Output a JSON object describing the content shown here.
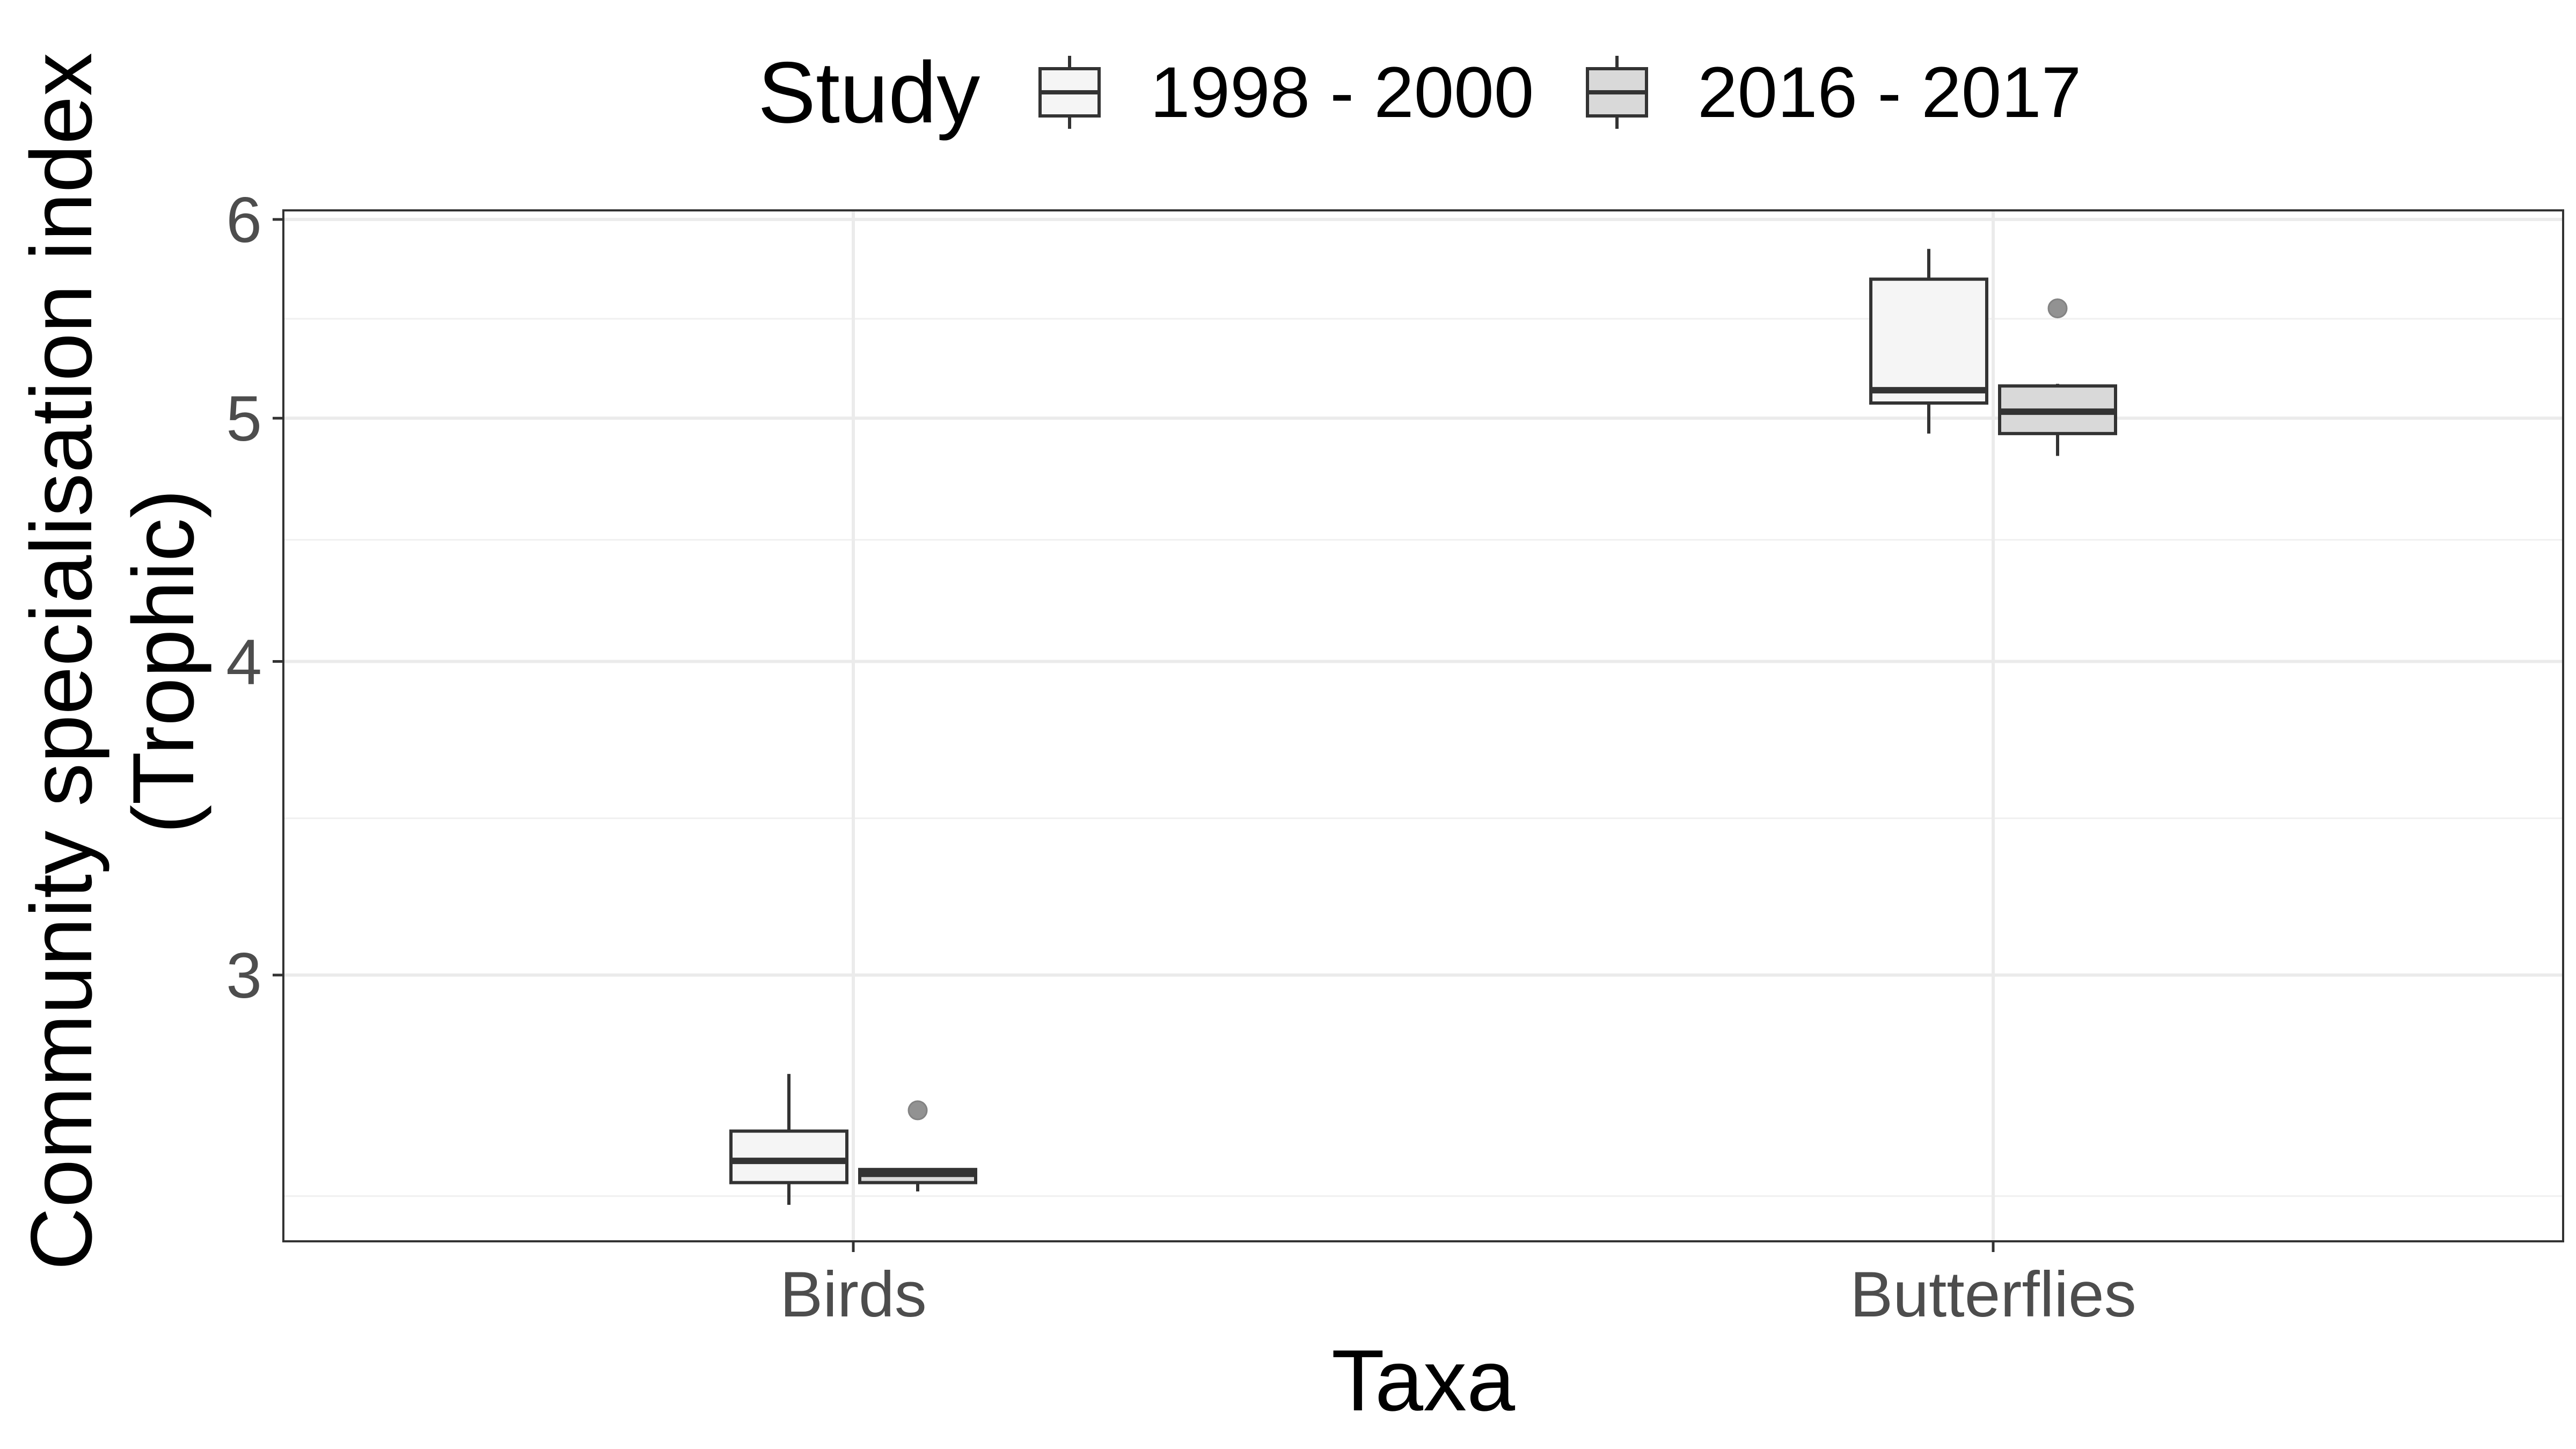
{
  "chart_data": {
    "type": "boxplot",
    "xlabel": "Taxa",
    "ylabel_lines": [
      "Community specialisation index",
      "(Trophic)"
    ],
    "categories": [
      "Birds",
      "Butterflies"
    ],
    "y_ticks": [
      3,
      4,
      5,
      6
    ],
    "y_tick_labels": [
      "3",
      "4",
      "5",
      "6"
    ],
    "y_scale": "log",
    "ylim": [
      2.35,
      6.05
    ],
    "grid": true,
    "legend": {
      "title": "Study",
      "position": "top"
    },
    "series": [
      {
        "name": "1998 - 2000",
        "fill": "#f5f5f5",
        "boxes": [
          {
            "category": "Birds",
            "whisker_low": 2.43,
            "q1": 2.48,
            "median": 2.53,
            "q3": 2.6,
            "whisker_high": 2.74,
            "outliers": []
          },
          {
            "category": "Butterflies",
            "whisker_low": 4.93,
            "q1": 5.07,
            "median": 5.13,
            "q3": 5.68,
            "whisker_high": 5.84,
            "outliers": []
          }
        ]
      },
      {
        "name": "2016 - 2017",
        "fill": "#d9d9d9",
        "boxes": [
          {
            "category": "Birds",
            "whisker_low": 2.46,
            "q1": 2.48,
            "median": 2.5,
            "q3": 2.51,
            "whisker_high": 2.51,
            "outliers": [
              2.65
            ]
          },
          {
            "category": "Butterflies",
            "whisker_low": 4.83,
            "q1": 4.93,
            "median": 5.03,
            "q3": 5.15,
            "whisker_high": 5.16,
            "outliers": [
              5.53
            ]
          }
        ]
      }
    ]
  }
}
